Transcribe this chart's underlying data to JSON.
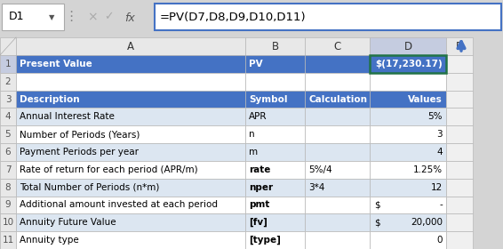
{
  "formula_bar_cell": "D1",
  "formula_bar_formula": "=PV(D7,D8,D9,D10,D11)",
  "col_headers": [
    "A",
    "B",
    "C",
    "D",
    "E"
  ],
  "header_bg": "#4472C4",
  "header_text_color": "#FFFFFF",
  "alt_row_bg": "#DCE6F1",
  "white_bg": "#FFFFFF",
  "grid_color": "#B8B8B8",
  "green_border": "#217346",
  "rows": [
    {
      "row": 1,
      "cells": [
        "Present Value",
        "PV",
        "",
        "$(17,230.17)"
      ],
      "bg": "#4472C4",
      "tc": "#FFFFFF",
      "bold": [
        true,
        true,
        false,
        true
      ],
      "align": [
        "L",
        "L",
        "L",
        "R"
      ]
    },
    {
      "row": 2,
      "cells": [
        "",
        "",
        "",
        ""
      ],
      "bg": "#FFFFFF",
      "tc": "#000000",
      "bold": [
        false,
        false,
        false,
        false
      ],
      "align": [
        "L",
        "L",
        "L",
        "R"
      ]
    },
    {
      "row": 3,
      "cells": [
        "Description",
        "Symbol",
        "Calculation",
        "Values"
      ],
      "bg": "#4472C4",
      "tc": "#FFFFFF",
      "bold": [
        true,
        true,
        true,
        true
      ],
      "align": [
        "L",
        "L",
        "L",
        "R"
      ]
    },
    {
      "row": 4,
      "cells": [
        "Annual Interest Rate",
        "APR",
        "",
        "5%"
      ],
      "bg": "#DCE6F1",
      "tc": "#000000",
      "bold": [
        false,
        false,
        false,
        false
      ],
      "align": [
        "L",
        "L",
        "L",
        "R"
      ]
    },
    {
      "row": 5,
      "cells": [
        "Number of Periods (Years)",
        "n",
        "",
        "3"
      ],
      "bg": "#FFFFFF",
      "tc": "#000000",
      "bold": [
        false,
        false,
        false,
        false
      ],
      "align": [
        "L",
        "L",
        "L",
        "R"
      ]
    },
    {
      "row": 6,
      "cells": [
        "Payment Periods per year",
        "m",
        "",
        "4"
      ],
      "bg": "#DCE6F1",
      "tc": "#000000",
      "bold": [
        false,
        false,
        false,
        false
      ],
      "align": [
        "L",
        "L",
        "L",
        "R"
      ]
    },
    {
      "row": 7,
      "cells": [
        "Rate of return for each period (APR/m)",
        "rate",
        "5%/4",
        "1.25%"
      ],
      "bg": "#FFFFFF",
      "tc": "#000000",
      "bold": [
        false,
        true,
        false,
        false
      ],
      "align": [
        "L",
        "L",
        "L",
        "R"
      ]
    },
    {
      "row": 8,
      "cells": [
        "Total Number of Periods (n*m)",
        "nper",
        "3*4",
        "12"
      ],
      "bg": "#DCE6F1",
      "tc": "#000000",
      "bold": [
        false,
        true,
        false,
        false
      ],
      "align": [
        "L",
        "L",
        "L",
        "R"
      ]
    },
    {
      "row": 9,
      "cells": [
        "Additional amount invested at each period",
        "pmt",
        "",
        ""
      ],
      "bg": "#FFFFFF",
      "tc": "#000000",
      "bold": [
        false,
        true,
        false,
        false
      ],
      "align": [
        "L",
        "L",
        "L",
        "R"
      ],
      "d_special": "$           -"
    },
    {
      "row": 10,
      "cells": [
        "Annuity Future Value",
        "[fv]",
        "",
        ""
      ],
      "bg": "#DCE6F1",
      "tc": "#000000",
      "bold": [
        false,
        true,
        false,
        false
      ],
      "align": [
        "L",
        "L",
        "L",
        "R"
      ],
      "d_special": "$    20,000"
    },
    {
      "row": 11,
      "cells": [
        "Annuity type",
        "[type]",
        "",
        "0"
      ],
      "bg": "#FFFFFF",
      "tc": "#000000",
      "bold": [
        false,
        true,
        false,
        false
      ],
      "align": [
        "L",
        "L",
        "L",
        "R"
      ]
    }
  ]
}
